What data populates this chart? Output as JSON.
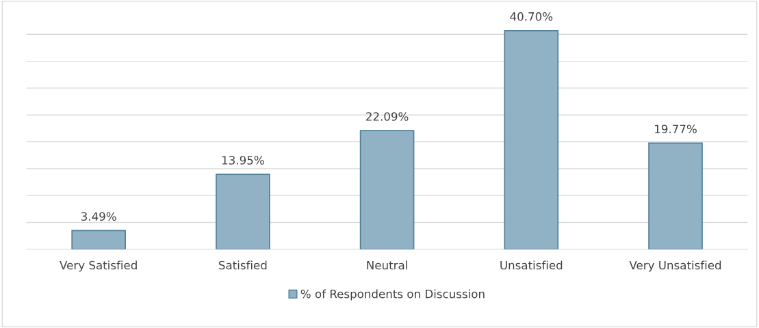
{
  "chart_data": {
    "type": "bar",
    "categories": [
      "Very Satisfied",
      "Satisfied",
      "Neutral",
      "Unsatisfied",
      "Very Unsatisfied"
    ],
    "series": [
      {
        "name": "% of Respondents on Discussion",
        "color": "#91b1c4",
        "values": [
          3.49,
          13.95,
          22.09,
          40.7,
          19.77
        ],
        "value_labels": [
          "3.49%",
          "13.95%",
          "22.09%",
          "40.70%",
          "19.77%"
        ]
      }
    ],
    "tick_labels": "x",
    "grid": "y",
    "legend": "bottom"
  }
}
